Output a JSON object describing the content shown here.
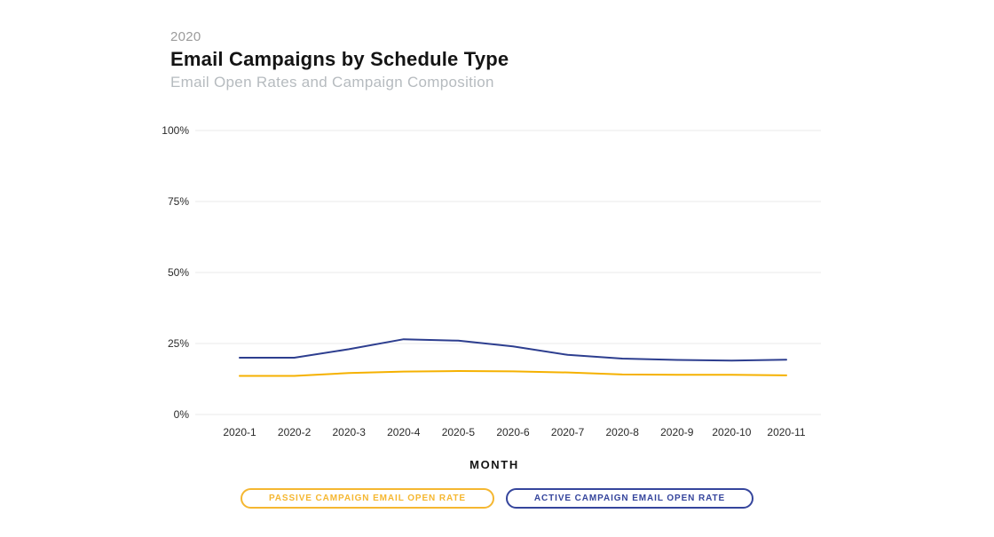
{
  "header": {
    "year": "2020",
    "title": "Email Campaigns by Schedule Type",
    "subtitle": "Email Open Rates and Campaign Composition"
  },
  "chart_data": {
    "type": "line",
    "x": [
      "2020-1",
      "2020-2",
      "2020-3",
      "2020-4",
      "2020-5",
      "2020-6",
      "2020-7",
      "2020-8",
      "2020-9",
      "2020-10",
      "2020-11"
    ],
    "xlabel": "MONTH",
    "ylabel": "",
    "ylim": [
      0,
      100
    ],
    "yticks": [
      0,
      25,
      50,
      75,
      100
    ],
    "ytick_labels": [
      "0%",
      "25%",
      "50%",
      "75%",
      "100%"
    ],
    "grid": true,
    "legend_position": "bottom",
    "series": [
      {
        "name": "passive",
        "label": "PASSIVE CAMPAIGN EMAIL OPEN RATE",
        "color": "#F5B100",
        "legend_color": "#F5B731",
        "values": [
          13.6,
          13.6,
          14.6,
          15.1,
          15.3,
          15.2,
          14.8,
          14.1,
          14.0,
          14.0,
          13.8
        ]
      },
      {
        "name": "active",
        "label": "ACTIVE CAMPAIGN EMAIL OPEN RATE",
        "color": "#2D3E8F",
        "legend_color": "#35459C",
        "values": [
          20.0,
          20.0,
          23.0,
          26.5,
          26.0,
          24.0,
          21.0,
          19.7,
          19.2,
          19.0,
          19.3
        ]
      }
    ]
  },
  "style": {
    "gridline_color": "#e9e9e9",
    "tick_color": "#2a2a2a"
  }
}
